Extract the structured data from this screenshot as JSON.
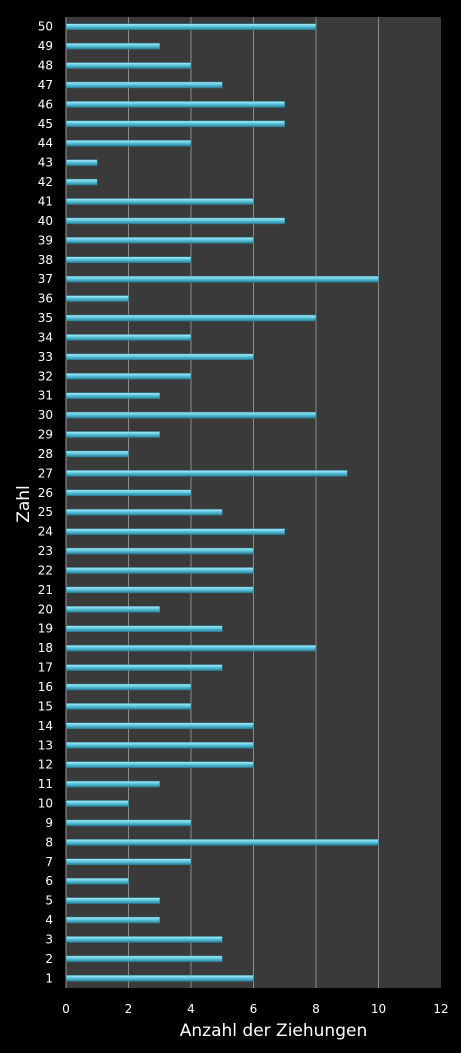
{
  "chart_data": {
    "type": "bar",
    "orientation": "horizontal",
    "xlabel": "Anzahl der Ziehungen",
    "ylabel": "Zahl",
    "xlim": [
      0,
      12
    ],
    "xticks": [
      0,
      2,
      4,
      6,
      8,
      10,
      12
    ],
    "grid": true,
    "legend": "none",
    "colors": {
      "background": "#000000",
      "plot_background": "#3a3a3a",
      "bar_fill": "#5bc8e0",
      "bar_highlight": "#b4ecf8",
      "bar_shadow": "#2b7f96",
      "gridline": "#8a8a8a",
      "text": "#ffffff"
    },
    "categories": [
      "1",
      "2",
      "3",
      "4",
      "5",
      "6",
      "7",
      "8",
      "9",
      "10",
      "11",
      "12",
      "13",
      "14",
      "15",
      "16",
      "17",
      "18",
      "19",
      "20",
      "21",
      "22",
      "23",
      "24",
      "25",
      "26",
      "27",
      "28",
      "29",
      "30",
      "31",
      "32",
      "33",
      "34",
      "35",
      "36",
      "37",
      "38",
      "39",
      "40",
      "41",
      "42",
      "43",
      "44",
      "45",
      "46",
      "47",
      "48",
      "49",
      "50"
    ],
    "values": [
      6,
      5,
      5,
      3,
      3,
      2,
      4,
      10,
      4,
      2,
      3,
      6,
      6,
      6,
      4,
      4,
      5,
      8,
      5,
      3,
      6,
      6,
      6,
      7,
      5,
      4,
      9,
      2,
      3,
      8,
      3,
      4,
      6,
      4,
      8,
      2,
      10,
      4,
      6,
      7,
      6,
      1,
      1,
      4,
      7,
      7,
      5,
      4,
      3,
      8
    ]
  }
}
